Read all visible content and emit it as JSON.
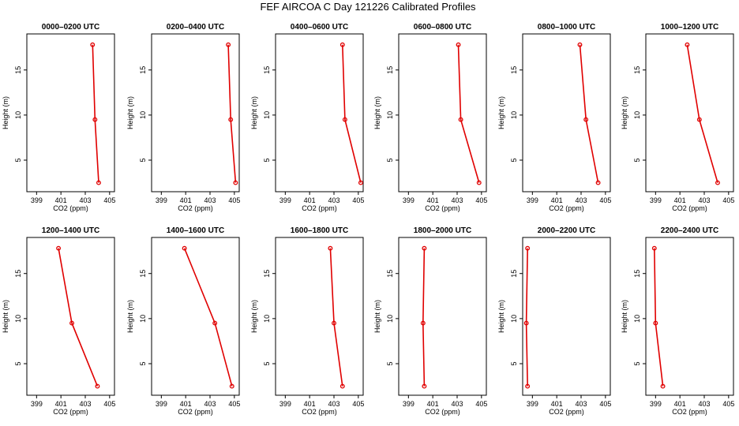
{
  "chart_title": "FEF AIRCOA C  Day 121226  Calibrated Profiles",
  "colors": {
    "series": "#e00000",
    "axes": "#000000",
    "background": "#ffffff"
  },
  "chart_data": [
    {
      "type": "line",
      "title": "0000–0200 UTC",
      "xlabel": "CO2 (ppm)",
      "ylabel": "Height (m)",
      "x": [
        404.1,
        403.8,
        403.6
      ],
      "y": [
        2.5,
        9.5,
        17.8
      ],
      "xlim": [
        398.2,
        405.4
      ],
      "ylim": [
        1.5,
        19
      ],
      "xticks": [
        "399",
        "401",
        "403",
        "405"
      ],
      "yticks": [
        "5",
        "10",
        "15"
      ]
    },
    {
      "type": "line",
      "title": "0200–0400 UTC",
      "xlabel": "CO2 (ppm)",
      "ylabel": "Height (m)",
      "x": [
        405.1,
        404.7,
        404.5
      ],
      "y": [
        2.5,
        9.5,
        17.8
      ],
      "xlim": [
        398.2,
        405.4
      ],
      "ylim": [
        1.5,
        19
      ],
      "xticks": [
        "399",
        "401",
        "403",
        "405"
      ],
      "yticks": [
        "5",
        "10",
        "15"
      ]
    },
    {
      "type": "line",
      "title": "0400–0600 UTC",
      "xlabel": "CO2 (ppm)",
      "ylabel": "Height (m)",
      "x": [
        405.2,
        403.9,
        403.7
      ],
      "y": [
        2.5,
        9.5,
        17.8
      ],
      "xlim": [
        398.2,
        405.4
      ],
      "ylim": [
        1.5,
        19
      ],
      "xticks": [
        "399",
        "401",
        "403",
        "405"
      ],
      "yticks": [
        "5",
        "10",
        "15"
      ]
    },
    {
      "type": "line",
      "title": "0600–0800 UTC",
      "xlabel": "CO2 (ppm)",
      "ylabel": "Height (m)",
      "x": [
        404.8,
        403.3,
        403.1
      ],
      "y": [
        2.5,
        9.5,
        17.8
      ],
      "xlim": [
        398.2,
        405.4
      ],
      "ylim": [
        1.5,
        19
      ],
      "xticks": [
        "399",
        "401",
        "403",
        "405"
      ],
      "yticks": [
        "5",
        "10",
        "15"
      ]
    },
    {
      "type": "line",
      "title": "0800–1000 UTC",
      "xlabel": "CO2 (ppm)",
      "ylabel": "Height (m)",
      "x": [
        404.4,
        403.4,
        402.9
      ],
      "y": [
        2.5,
        9.5,
        17.8
      ],
      "xlim": [
        398.2,
        405.4
      ],
      "ylim": [
        1.5,
        19
      ],
      "xticks": [
        "399",
        "401",
        "403",
        "405"
      ],
      "yticks": [
        "5",
        "10",
        "15"
      ]
    },
    {
      "type": "line",
      "title": "1000–1200 UTC",
      "xlabel": "CO2 (ppm)",
      "ylabel": "Height (m)",
      "x": [
        404.1,
        402.6,
        401.6
      ],
      "y": [
        2.5,
        9.5,
        17.8
      ],
      "xlim": [
        398.2,
        405.4
      ],
      "ylim": [
        1.5,
        19
      ],
      "xticks": [
        "399",
        "401",
        "403",
        "405"
      ],
      "yticks": [
        "5",
        "10",
        "15"
      ]
    },
    {
      "type": "line",
      "title": "1200–1400 UTC",
      "xlabel": "CO2 (ppm)",
      "ylabel": "Height (m)",
      "x": [
        404.0,
        401.9,
        400.8
      ],
      "y": [
        2.5,
        9.5,
        17.8
      ],
      "xlim": [
        398.2,
        405.4
      ],
      "ylim": [
        1.5,
        19
      ],
      "xticks": [
        "399",
        "401",
        "403",
        "405"
      ],
      "yticks": [
        "5",
        "10",
        "15"
      ]
    },
    {
      "type": "line",
      "title": "1400–1600 UTC",
      "xlabel": "CO2 (ppm)",
      "ylabel": "Height (m)",
      "x": [
        404.8,
        403.4,
        400.9
      ],
      "y": [
        2.5,
        9.5,
        17.8
      ],
      "xlim": [
        398.2,
        405.4
      ],
      "ylim": [
        1.5,
        19
      ],
      "xticks": [
        "399",
        "401",
        "403",
        "405"
      ],
      "yticks": [
        "5",
        "10",
        "15"
      ]
    },
    {
      "type": "line",
      "title": "1600–1800 UTC",
      "xlabel": "CO2 (ppm)",
      "ylabel": "Height (m)",
      "x": [
        403.7,
        403.0,
        402.7
      ],
      "y": [
        2.5,
        9.5,
        17.8
      ],
      "xlim": [
        398.2,
        405.4
      ],
      "ylim": [
        1.5,
        19
      ],
      "xticks": [
        "399",
        "401",
        "403",
        "405"
      ],
      "yticks": [
        "5",
        "10",
        "15"
      ]
    },
    {
      "type": "line",
      "title": "1800–2000 UTC",
      "xlabel": "CO2 (ppm)",
      "ylabel": "Height (m)",
      "x": [
        400.3,
        400.2,
        400.3
      ],
      "y": [
        2.5,
        9.5,
        17.8
      ],
      "xlim": [
        398.2,
        405.4
      ],
      "ylim": [
        1.5,
        19
      ],
      "xticks": [
        "399",
        "401",
        "403",
        "405"
      ],
      "yticks": [
        "5",
        "10",
        "15"
      ]
    },
    {
      "type": "line",
      "title": "2000–2200 UTC",
      "xlabel": "CO2 (ppm)",
      "ylabel": "Height (m)",
      "x": [
        398.6,
        398.5,
        398.6
      ],
      "y": [
        2.5,
        9.5,
        17.8
      ],
      "xlim": [
        398.2,
        405.4
      ],
      "ylim": [
        1.5,
        19
      ],
      "xticks": [
        "399",
        "401",
        "403",
        "405"
      ],
      "yticks": [
        "5",
        "10",
        "15"
      ]
    },
    {
      "type": "line",
      "title": "2200–2400 UTC",
      "xlabel": "CO2 (ppm)",
      "ylabel": "Height (m)",
      "x": [
        399.6,
        399.0,
        398.9
      ],
      "y": [
        2.5,
        9.5,
        17.8
      ],
      "xlim": [
        398.2,
        405.4
      ],
      "ylim": [
        1.5,
        19
      ],
      "xticks": [
        "399",
        "401",
        "403",
        "405"
      ],
      "yticks": [
        "5",
        "10",
        "15"
      ]
    }
  ]
}
